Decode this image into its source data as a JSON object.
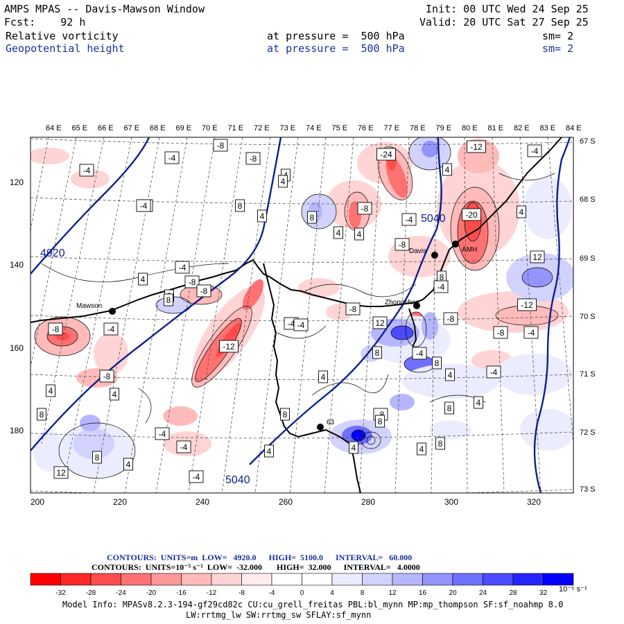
{
  "header": {
    "line1_left": "AMPS MPAS -- Davis-Mawson Window",
    "line1_right": "Init: 00 UTC Wed 24 Sep 25",
    "line2_left": "Fcst:    92 h",
    "line2_right": "Valid: 20 UTC Sat 27 Sep 25",
    "field1_name": "Relative vorticity",
    "field1_level": "at pressure =  500 hPa",
    "field1_sm": "sm= 2",
    "field2_name": "Geopotential height",
    "field2_level": "at pressure =  500 hPa",
    "field2_sm": "sm= 2"
  },
  "map": {
    "top_lon_labels": [
      "64 E",
      "65 E",
      "66 E",
      "67 E",
      "68 E",
      "69 E",
      "70 E",
      "71 E",
      "72 E",
      "73 E",
      "74 E",
      "75 E",
      "76 E",
      "77 E",
      "78 E",
      "79 E",
      "80 E",
      "81 E",
      "82 E",
      "83 E",
      "84 E"
    ],
    "right_lat_labels": [
      "67 S",
      "68 S",
      "69 S",
      "70 S",
      "71 S",
      "72 S",
      "73 S"
    ],
    "bottom_x_labels": [
      "200",
      "220",
      "240",
      "260",
      "280",
      "300",
      "320"
    ],
    "left_y_labels": [
      "120",
      "140",
      "160",
      "180"
    ],
    "stations": [
      {
        "label": "Mawson"
      },
      {
        "label": "Zhongshan"
      },
      {
        "label": "Davis"
      },
      {
        "label": "AMH"
      },
      {
        "label": "63"
      }
    ],
    "height_labels": [
      "4920",
      "5040",
      "5040"
    ],
    "contour_labels": [
      "-8",
      "-4",
      "-4",
      "-8",
      "-4",
      "4",
      "-8",
      "4",
      "8",
      "4",
      "-8",
      "-4",
      "-4",
      "8",
      "4",
      "-24",
      "4",
      "-12",
      "-4",
      "-8",
      "8",
      "4",
      "4",
      "-4",
      "8",
      "-8",
      "-4",
      "4",
      "8",
      "-8",
      "-4",
      "-12",
      "-20",
      "-4",
      "12",
      "8",
      "-8",
      "-12",
      "-4",
      "-8",
      "-4",
      "-8",
      "12",
      "-4",
      "4",
      "8",
      "-4",
      "4",
      "8",
      "4",
      "8",
      "-8",
      "8",
      "4",
      "-4",
      "4",
      "8",
      "12",
      "4",
      "-4",
      "4",
      "8",
      "-8",
      "4",
      "8",
      "4",
      "-4"
    ],
    "colors": {
      "coast": "#000000",
      "height_contour": "#0d1f8c",
      "grid": "#666666"
    }
  },
  "legend": {
    "contours1": "CONTOURS:  UNITS=m  LOW=   4920.0      HIGH=  5100.0      INTERVAL=   60.000",
    "contours2": "CONTOURS:  UNITS=10⁻⁵ s⁻¹  LOW=  -32.000       HIGH=  32.000      INTERVAL=   4.0000",
    "ticks": [
      "-32",
      "-28",
      "-24",
      "-20",
      "-16",
      "-12",
      "-8",
      "-4",
      "0",
      "4",
      "8",
      "12",
      "16",
      "20",
      "24",
      "28",
      "32"
    ],
    "unit": "10⁻⁵ s⁻¹",
    "colors": [
      "#ff0000",
      "#ff2626",
      "#ff4c4c",
      "#ff7272",
      "#ff9898",
      "#ffbaba",
      "#ffd4d4",
      "#ffecec",
      "#ffffff",
      "#ffffff",
      "#ececff",
      "#d2d2ff",
      "#b6b6ff",
      "#9494ff",
      "#7070ff",
      "#4b4bff",
      "#2424ff",
      "#0000ff"
    ]
  },
  "footer": {
    "line1": "Model Info: MPASv8.2.3-194-gf29cd82c CU:cu_grell_freitas PBL:bl_mynn MP:mp_thompson SF:sf_noahmp 8.0",
    "line2": "LW:rrtmg_lw SW:rrtmg_sw SFLAY:sf_mynn"
  }
}
